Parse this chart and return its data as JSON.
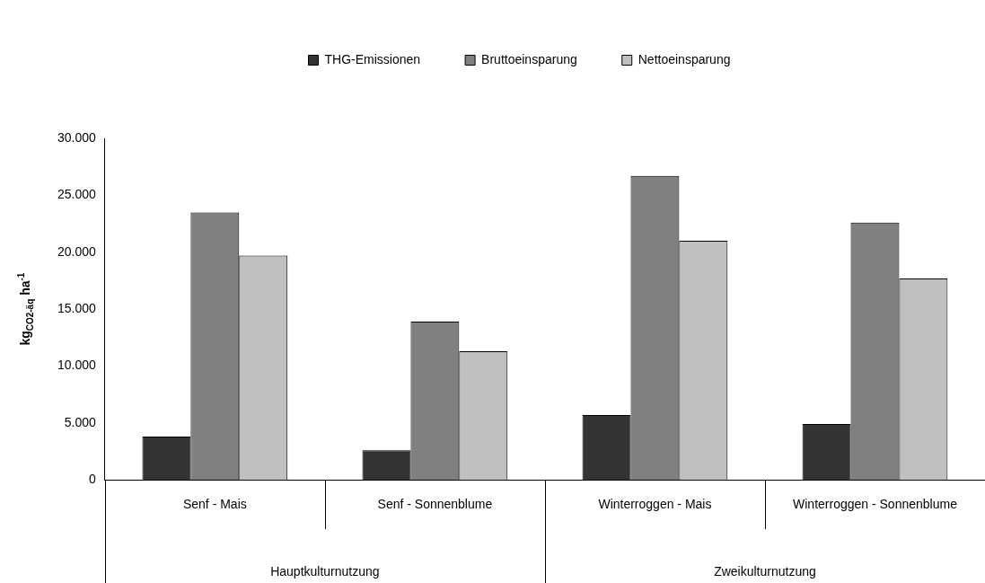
{
  "chart_data": {
    "type": "bar",
    "categories": [
      "Senf - Mais",
      "Senf - Sonnenblume",
      "Winterroggen - Mais",
      "Winterroggen - Sonnenblume"
    ],
    "series": [
      {
        "name": "THG-Emissionen",
        "color": "#333333",
        "values": [
          3800,
          2600,
          5700,
          4900
        ]
      },
      {
        "name": "Bruttoeinsparung",
        "color": "#808080",
        "values": [
          23500,
          13900,
          26700,
          22600
        ]
      },
      {
        "name": "Nettoeinsparung",
        "color": "#c0c0c0",
        "values": [
          19700,
          11300,
          21000,
          17700
        ]
      }
    ],
    "ylabel": "kg$_{CO2-äq}$ ha$^{-1}$",
    "ylim": [
      0,
      30000
    ],
    "yticks": [
      0,
      {
        "value": 5000,
        "label": "5.000"
      },
      {
        "value": 10000,
        "label": "10.000"
      },
      {
        "value": 15000,
        "label": "15.000"
      },
      {
        "value": 20000,
        "label": "20.000"
      },
      {
        "value": 25000,
        "label": "25.000"
      },
      {
        "value": 30000,
        "label": "30.000"
      }
    ],
    "annotations": [
      "Hauptkulturnutzung",
      "Zweikulturnutzung"
    ],
    "grid": false,
    "legend": "top"
  }
}
